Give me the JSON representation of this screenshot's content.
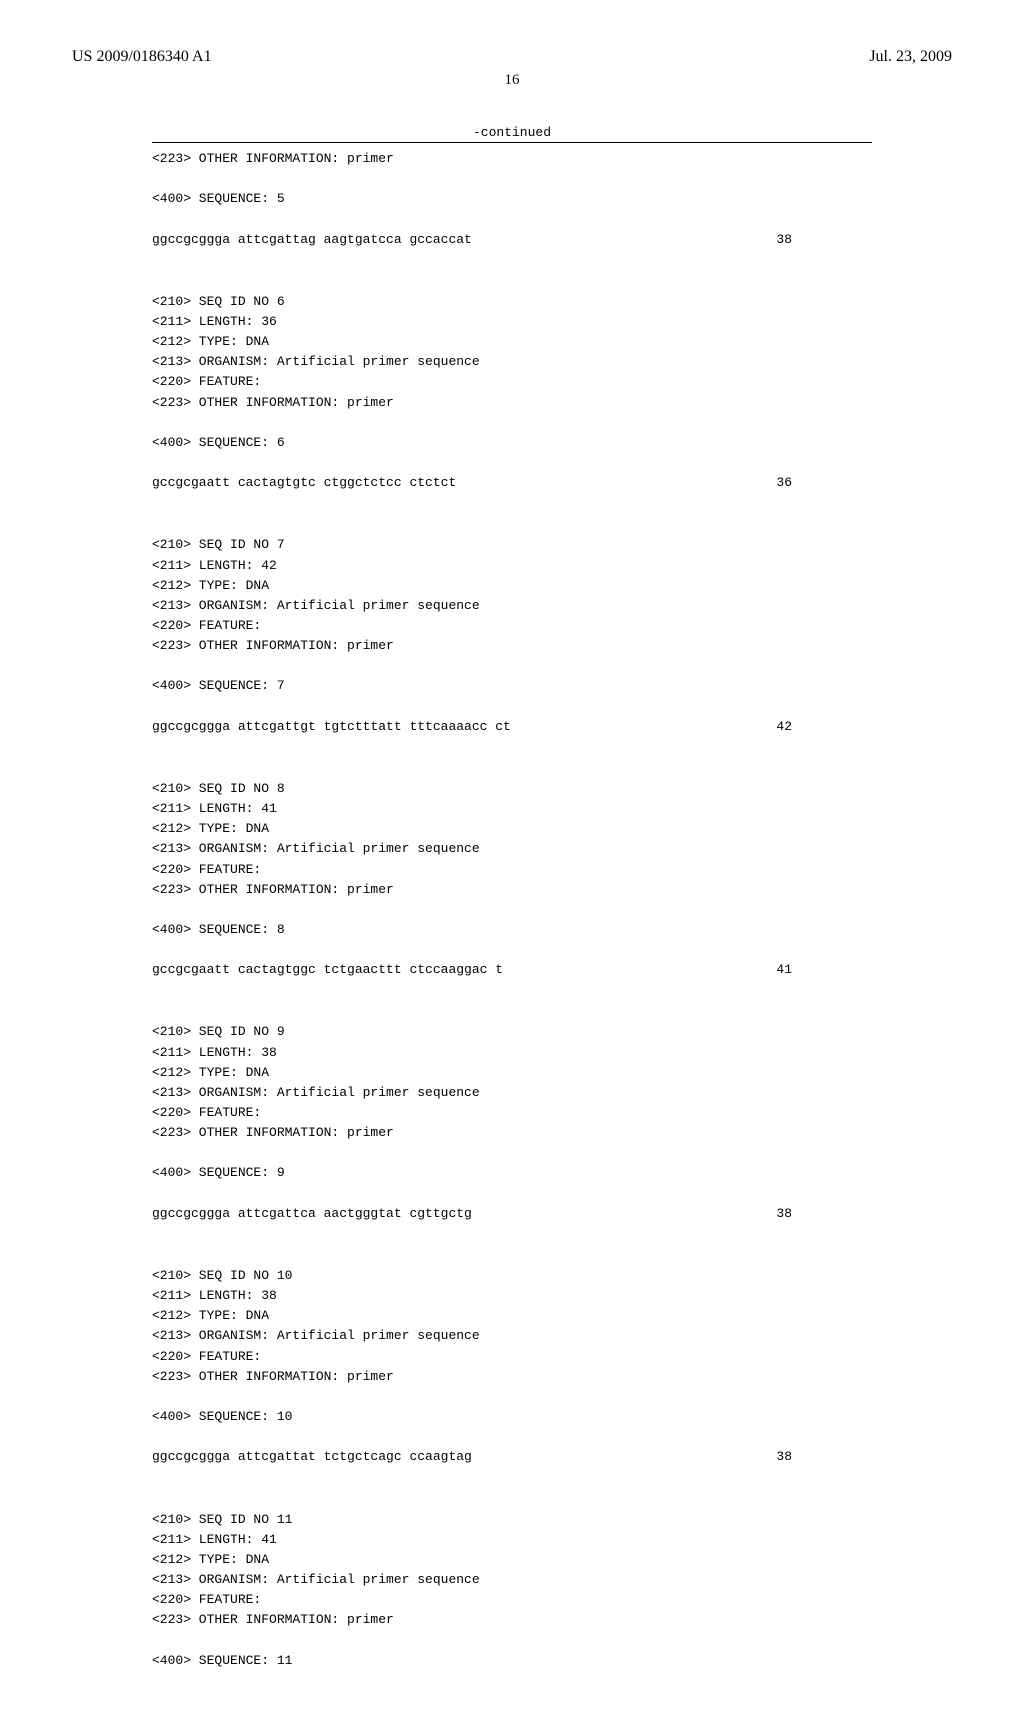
{
  "header": {
    "doc_id": "US 2009/0186340 A1",
    "doc_date": "Jul. 23, 2009"
  },
  "page_number": "16",
  "continued_label": "-continued",
  "blocks": [
    {
      "meta_lines": [
        "<223> OTHER INFORMATION: primer",
        "",
        "<400> SEQUENCE: 5"
      ],
      "sequence": "ggccgcggga attcgattag aagtgatcca gccaccat",
      "seq_len": "38"
    },
    {
      "meta_lines": [
        "<210> SEQ ID NO 6",
        "<211> LENGTH: 36",
        "<212> TYPE: DNA",
        "<213> ORGANISM: Artificial primer sequence",
        "<220> FEATURE:",
        "<223> OTHER INFORMATION: primer",
        "",
        "<400> SEQUENCE: 6"
      ],
      "sequence": "gccgcgaatt cactagtgtc ctggctctcc ctctct",
      "seq_len": "36"
    },
    {
      "meta_lines": [
        "<210> SEQ ID NO 7",
        "<211> LENGTH: 42",
        "<212> TYPE: DNA",
        "<213> ORGANISM: Artificial primer sequence",
        "<220> FEATURE:",
        "<223> OTHER INFORMATION: primer",
        "",
        "<400> SEQUENCE: 7"
      ],
      "sequence": "ggccgcggga attcgattgt tgtctttatt tttcaaaacc ct",
      "seq_len": "42"
    },
    {
      "meta_lines": [
        "<210> SEQ ID NO 8",
        "<211> LENGTH: 41",
        "<212> TYPE: DNA",
        "<213> ORGANISM: Artificial primer sequence",
        "<220> FEATURE:",
        "<223> OTHER INFORMATION: primer",
        "",
        "<400> SEQUENCE: 8"
      ],
      "sequence": "gccgcgaatt cactagtggc tctgaacttt ctccaaggac t",
      "seq_len": "41"
    },
    {
      "meta_lines": [
        "<210> SEQ ID NO 9",
        "<211> LENGTH: 38",
        "<212> TYPE: DNA",
        "<213> ORGANISM: Artificial primer sequence",
        "<220> FEATURE:",
        "<223> OTHER INFORMATION: primer",
        "",
        "<400> SEQUENCE: 9"
      ],
      "sequence": "ggccgcggga attcgattca aactgggtat cgttgctg",
      "seq_len": "38"
    },
    {
      "meta_lines": [
        "<210> SEQ ID NO 10",
        "<211> LENGTH: 38",
        "<212> TYPE: DNA",
        "<213> ORGANISM: Artificial primer sequence",
        "<220> FEATURE:",
        "<223> OTHER INFORMATION: primer",
        "",
        "<400> SEQUENCE: 10"
      ],
      "sequence": "ggccgcggga attcgattat tctgctcagc ccaagtag",
      "seq_len": "38"
    },
    {
      "meta_lines": [
        "<210> SEQ ID NO 11",
        "<211> LENGTH: 41",
        "<212> TYPE: DNA",
        "<213> ORGANISM: Artificial primer sequence",
        "<220> FEATURE:",
        "<223> OTHER INFORMATION: primer",
        "",
        "<400> SEQUENCE: 11"
      ],
      "sequence": "",
      "seq_len": ""
    }
  ]
}
